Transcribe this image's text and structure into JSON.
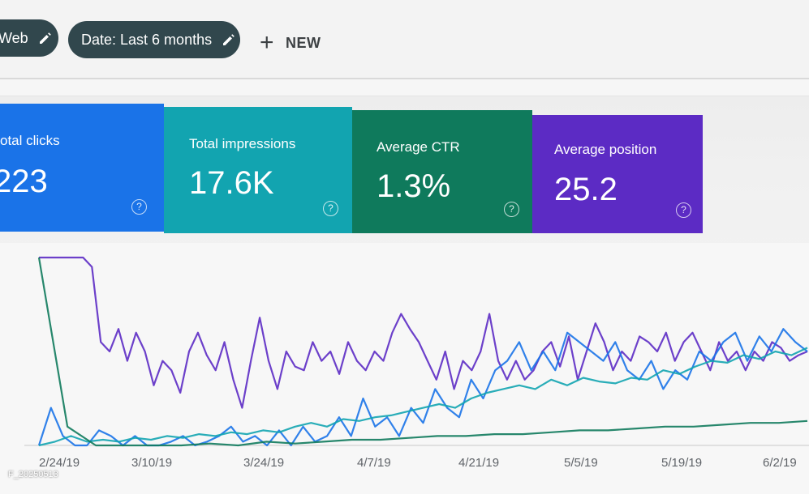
{
  "toolbar": {
    "chips": [
      {
        "label": "Web",
        "icon": "pencil-icon"
      },
      {
        "label": "Date: Last 6 months",
        "icon": "pencil-icon"
      }
    ],
    "new_label": "NEW",
    "new_icon": "plus-icon"
  },
  "metrics": [
    {
      "label": "otal clicks",
      "value": "223",
      "color": "#1a73e8",
      "icon": "help-icon"
    },
    {
      "label": "Total impressions",
      "value": "17.6K",
      "color": "#12a4b0",
      "icon": "help-icon"
    },
    {
      "label": "Average CTR",
      "value": "1.3%",
      "color": "#0f7a5c",
      "icon": "help-icon"
    },
    {
      "label": "Average position",
      "value": "25.2",
      "color": "#5c2bc4",
      "icon": "help-icon"
    }
  ],
  "chart_data": {
    "type": "line",
    "x_ticks": [
      "2/24/19",
      "3/10/19",
      "3/24/19",
      "4/7/19",
      "4/21/19",
      "5/5/19",
      "5/19/19",
      "6/2/19"
    ],
    "series": [
      {
        "color": "#5c2bc4",
        "values": [
          1,
          1,
          1,
          1,
          1,
          1,
          0.95,
          0.55,
          0.5,
          0.62,
          0.45,
          0.6,
          0.5,
          0.32,
          0.45,
          0.4,
          0.28,
          0.5,
          0.6,
          0.48,
          0.4,
          0.55,
          0.35,
          0.2,
          0.45,
          0.68,
          0.45,
          0.3,
          0.5,
          0.42,
          0.4,
          0.55,
          0.45,
          0.5,
          0.38,
          0.55,
          0.45,
          0.4,
          0.5,
          0.45,
          0.6,
          0.7,
          0.62,
          0.55,
          0.45,
          0.35,
          0.5,
          0.3,
          0.45,
          0.4,
          0.5,
          0.7,
          0.45,
          0.35,
          0.45,
          0.35,
          0.4,
          0.5,
          0.55,
          0.42,
          0.58,
          0.35,
          0.5,
          0.65,
          0.55,
          0.4,
          0.5,
          0.45,
          0.58,
          0.55,
          0.5,
          0.6,
          0.45,
          0.55,
          0.6,
          0.5,
          0.4,
          0.55,
          0.45,
          0.5,
          0.4,
          0.5,
          0.45,
          0.55,
          0.52,
          0.45,
          0.48,
          0.5
        ]
      },
      {
        "color": "#1a73e8",
        "values": [
          0,
          0.2,
          0.05,
          0,
          0,
          0.08,
          0.05,
          0,
          0.05,
          0,
          0,
          0.02,
          0.05,
          0,
          0.02,
          0.05,
          0.1,
          0.02,
          0.05,
          0,
          0.08,
          0,
          0.1,
          0.02,
          0.05,
          0.15,
          0.05,
          0.25,
          0.1,
          0.15,
          0.05,
          0.2,
          0.12,
          0.3,
          0.2,
          0.15,
          0.35,
          0.25,
          0.4,
          0.45,
          0.55,
          0.4,
          0.5,
          0.4,
          0.6,
          0.55,
          0.5,
          0.45,
          0.55,
          0.4,
          0.35,
          0.45,
          0.3,
          0.4,
          0.35,
          0.5,
          0.45,
          0.55,
          0.6,
          0.45,
          0.58,
          0.5,
          0.62,
          0.55,
          0.5
        ]
      },
      {
        "color": "#12a4b0",
        "values": [
          0,
          0.02,
          0.05,
          0.02,
          0.03,
          0.02,
          0.04,
          0.03,
          0.05,
          0.04,
          0.06,
          0.05,
          0.07,
          0.06,
          0.08,
          0.07,
          0.1,
          0.12,
          0.1,
          0.14,
          0.13,
          0.15,
          0.16,
          0.18,
          0.2,
          0.22,
          0.2,
          0.25,
          0.28,
          0.3,
          0.32,
          0.3,
          0.35,
          0.32,
          0.36,
          0.34,
          0.33,
          0.36,
          0.35,
          0.4,
          0.38,
          0.42,
          0.45,
          0.44,
          0.48,
          0.46,
          0.5,
          0.48,
          0.52
        ]
      },
      {
        "color": "#0f7a5c",
        "values": [
          1,
          0.1,
          0,
          0,
          0,
          0,
          0.01,
          0,
          0.02,
          0.01,
          0.02,
          0.03,
          0.03,
          0.04,
          0.05,
          0.05,
          0.06,
          0.06,
          0.07,
          0.08,
          0.08,
          0.09,
          0.1,
          0.1,
          0.11,
          0.12,
          0.12,
          0.13
        ]
      }
    ]
  },
  "watermark": "F_20250513"
}
